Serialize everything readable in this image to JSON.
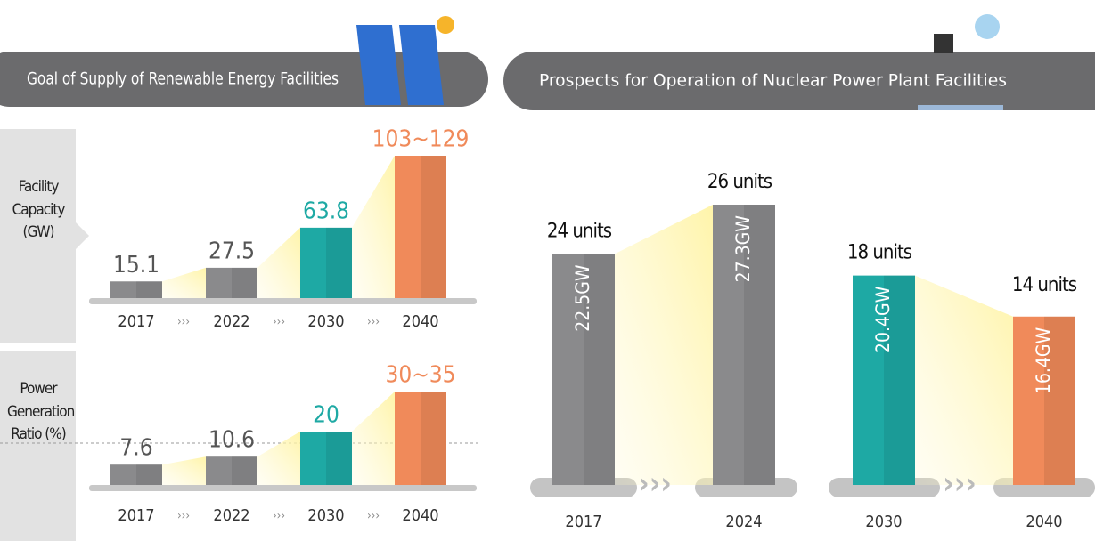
{
  "chart_data": [
    {
      "type": "bar",
      "title": "Goal of Supply of Renewable Energy Facilities",
      "y_label": "Facility Capacity (GW)",
      "categories": [
        "2017",
        "2022",
        "2030",
        "2040"
      ],
      "values": [
        15.1,
        27.5,
        63.8,
        129
      ],
      "value_labels": [
        "15.1",
        "27.5",
        "63.8",
        "103~129"
      ],
      "colors": [
        "#8a8a8c",
        "#8a8a8c",
        "#1ea9a4",
        "#f08a5a"
      ]
    },
    {
      "type": "bar",
      "y_label": "Power Generation Ratio (%)",
      "categories": [
        "2017",
        "2022",
        "2030",
        "2040"
      ],
      "values": [
        7.6,
        10.6,
        20,
        35
      ],
      "value_labels": [
        "7.6",
        "10.6",
        "20",
        "30~35"
      ],
      "colors": [
        "#8a8a8c",
        "#8a8a8c",
        "#1ea9a4",
        "#f08a5a"
      ]
    },
    {
      "type": "bar",
      "title": "Prospects for Operation of Nuclear Power Plant Facilities",
      "categories": [
        "2017",
        "2024",
        "2030",
        "2040"
      ],
      "values": [
        22.5,
        27.3,
        20.4,
        16.4
      ],
      "value_labels": [
        "22.5GW",
        "27.3GW",
        "20.4GW",
        "16.4GW"
      ],
      "units": [
        24,
        26,
        18,
        14
      ],
      "unit_labels": [
        "24 units",
        "26 units",
        "18 units",
        "14 units"
      ],
      "colors": [
        "#8a8a8c",
        "#8a8a8c",
        "#1ea9a4",
        "#f08a5a"
      ]
    }
  ]
}
